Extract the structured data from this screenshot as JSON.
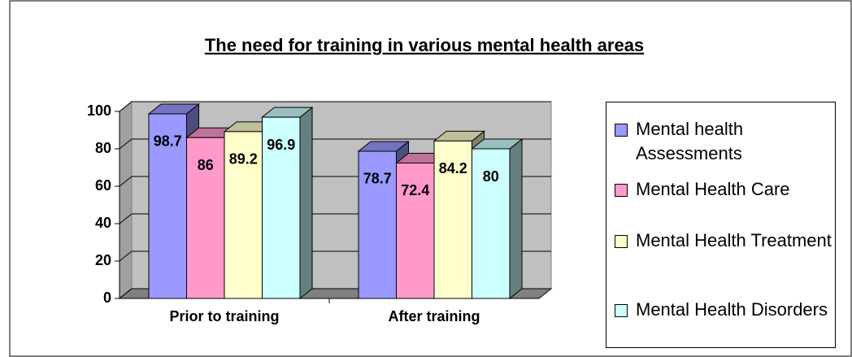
{
  "chart_data": {
    "type": "bar3d",
    "title": "The need for training in various mental health areas",
    "categories": [
      "Prior to training",
      "After training"
    ],
    "series": [
      {
        "name": "Mental health Assessments",
        "color": "#9999ff",
        "values": [
          98.7,
          78.7
        ]
      },
      {
        "name": "Mental Health Care",
        "color": "#ff99cc",
        "values": [
          86,
          72.4
        ]
      },
      {
        "name": "Mental Health Treatment",
        "color": "#ffffcc",
        "values": [
          89.2,
          84.2
        ]
      },
      {
        "name": "Mental Health Disorders",
        "color": "#ccffff",
        "values": [
          96.9,
          80
        ]
      }
    ],
    "ylim": [
      0,
      100
    ],
    "yticks": [
      0,
      20,
      40,
      60,
      80,
      100
    ],
    "grid": true,
    "legend": "right"
  }
}
